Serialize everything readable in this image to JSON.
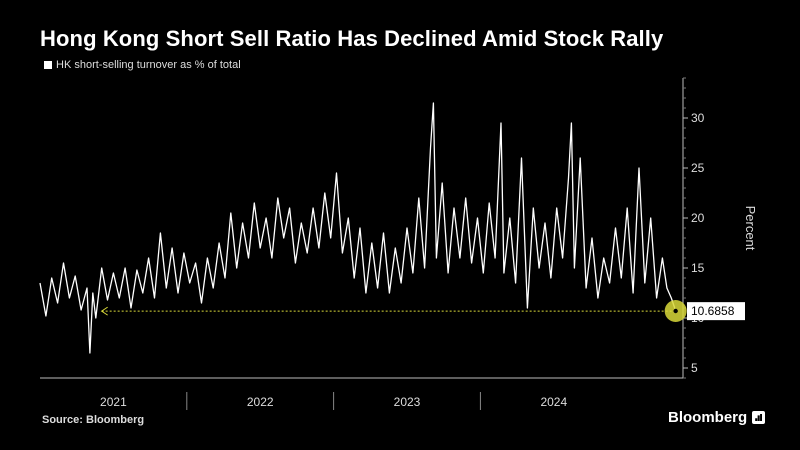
{
  "header": {
    "title": "Hong Kong Short Sell Ratio Has Declined Amid Stock Rally",
    "legend_label": "HK short-selling turnover as % of total"
  },
  "footer": {
    "source": "Source: Bloomberg",
    "brand": "Bloomberg"
  },
  "colors": {
    "background": "#000000",
    "series": "#ffffff",
    "highlight": "#d9d93a",
    "axis": "#bbbbbb"
  },
  "chart_data": {
    "type": "line",
    "title": "Hong Kong Short Sell Ratio Has Declined Amid Stock Rally",
    "ylabel": "Percent",
    "xlabel": "",
    "ylim": [
      4,
      34
    ],
    "yticks": [
      5,
      10,
      15,
      20,
      25,
      30
    ],
    "y_axis_side": "right",
    "x_range": [
      2020.5,
      2024.88
    ],
    "year_labels": [
      {
        "label": "2021",
        "center": 2021.0
      },
      {
        "label": "2022",
        "center": 2022.0
      },
      {
        "label": "2023",
        "center": 2023.0
      },
      {
        "label": "2024",
        "center": 2024.0
      }
    ],
    "year_dividers": [
      2021.5,
      2022.5,
      2023.5
    ],
    "series": [
      {
        "name": "HK short-selling turnover as % of total",
        "points": [
          [
            2020.5,
            13.5
          ],
          [
            2020.54,
            10.2
          ],
          [
            2020.58,
            14.0
          ],
          [
            2020.62,
            11.5
          ],
          [
            2020.66,
            15.5
          ],
          [
            2020.7,
            12.0
          ],
          [
            2020.74,
            14.2
          ],
          [
            2020.78,
            10.8
          ],
          [
            2020.82,
            13.0
          ],
          [
            2020.84,
            6.5
          ],
          [
            2020.86,
            12.5
          ],
          [
            2020.88,
            10.0
          ],
          [
            2020.92,
            15.0
          ],
          [
            2020.96,
            11.8
          ],
          [
            2021.0,
            14.5
          ],
          [
            2021.04,
            12.0
          ],
          [
            2021.08,
            15.0
          ],
          [
            2021.12,
            11.0
          ],
          [
            2021.16,
            14.8
          ],
          [
            2021.2,
            12.5
          ],
          [
            2021.24,
            16.0
          ],
          [
            2021.28,
            12.0
          ],
          [
            2021.32,
            18.5
          ],
          [
            2021.36,
            13.0
          ],
          [
            2021.4,
            17.0
          ],
          [
            2021.44,
            12.5
          ],
          [
            2021.48,
            16.5
          ],
          [
            2021.52,
            13.5
          ],
          [
            2021.56,
            15.5
          ],
          [
            2021.6,
            11.5
          ],
          [
            2021.64,
            16.0
          ],
          [
            2021.68,
            13.0
          ],
          [
            2021.72,
            17.5
          ],
          [
            2021.76,
            14.0
          ],
          [
            2021.8,
            20.5
          ],
          [
            2021.84,
            15.0
          ],
          [
            2021.88,
            19.5
          ],
          [
            2021.92,
            16.0
          ],
          [
            2021.96,
            21.5
          ],
          [
            2022.0,
            17.0
          ],
          [
            2022.04,
            20.0
          ],
          [
            2022.08,
            16.0
          ],
          [
            2022.12,
            22.0
          ],
          [
            2022.16,
            18.0
          ],
          [
            2022.2,
            21.0
          ],
          [
            2022.24,
            15.5
          ],
          [
            2022.28,
            19.5
          ],
          [
            2022.32,
            16.5
          ],
          [
            2022.36,
            21.0
          ],
          [
            2022.4,
            17.0
          ],
          [
            2022.44,
            22.5
          ],
          [
            2022.48,
            18.0
          ],
          [
            2022.52,
            24.5
          ],
          [
            2022.56,
            16.5
          ],
          [
            2022.6,
            20.0
          ],
          [
            2022.64,
            14.0
          ],
          [
            2022.68,
            19.0
          ],
          [
            2022.72,
            12.5
          ],
          [
            2022.76,
            17.5
          ],
          [
            2022.8,
            13.0
          ],
          [
            2022.84,
            18.5
          ],
          [
            2022.88,
            12.5
          ],
          [
            2022.92,
            17.0
          ],
          [
            2022.96,
            13.5
          ],
          [
            2023.0,
            19.0
          ],
          [
            2023.04,
            14.5
          ],
          [
            2023.08,
            22.0
          ],
          [
            2023.12,
            15.0
          ],
          [
            2023.16,
            27.0
          ],
          [
            2023.18,
            31.5
          ],
          [
            2023.2,
            16.0
          ],
          [
            2023.24,
            23.5
          ],
          [
            2023.28,
            14.5
          ],
          [
            2023.32,
            21.0
          ],
          [
            2023.36,
            16.0
          ],
          [
            2023.4,
            22.0
          ],
          [
            2023.44,
            15.5
          ],
          [
            2023.48,
            20.0
          ],
          [
            2023.52,
            14.5
          ],
          [
            2023.56,
            21.5
          ],
          [
            2023.6,
            16.0
          ],
          [
            2023.64,
            29.5
          ],
          [
            2023.66,
            14.5
          ],
          [
            2023.7,
            20.0
          ],
          [
            2023.74,
            13.5
          ],
          [
            2023.78,
            26.0
          ],
          [
            2023.82,
            11.0
          ],
          [
            2023.86,
            21.0
          ],
          [
            2023.9,
            15.0
          ],
          [
            2023.94,
            19.5
          ],
          [
            2023.98,
            14.0
          ],
          [
            2024.02,
            21.0
          ],
          [
            2024.06,
            16.0
          ],
          [
            2024.1,
            24.0
          ],
          [
            2024.12,
            29.5
          ],
          [
            2024.14,
            15.0
          ],
          [
            2024.18,
            26.0
          ],
          [
            2024.22,
            13.0
          ],
          [
            2024.26,
            18.0
          ],
          [
            2024.3,
            12.0
          ],
          [
            2024.34,
            16.0
          ],
          [
            2024.38,
            13.5
          ],
          [
            2024.42,
            19.0
          ],
          [
            2024.46,
            14.0
          ],
          [
            2024.5,
            21.0
          ],
          [
            2024.54,
            12.5
          ],
          [
            2024.58,
            25.0
          ],
          [
            2024.62,
            13.5
          ],
          [
            2024.66,
            20.0
          ],
          [
            2024.7,
            12.0
          ],
          [
            2024.74,
            16.0
          ],
          [
            2024.77,
            13.0
          ],
          [
            2024.8,
            12.0
          ],
          [
            2024.83,
            10.7
          ]
        ]
      }
    ],
    "annotations": [
      {
        "type": "reference-line",
        "value": 10.6858,
        "label": "10.6858",
        "from_x": 2020.92,
        "to_x": 2024.83
      }
    ],
    "grid": false,
    "legend": "top-left"
  }
}
